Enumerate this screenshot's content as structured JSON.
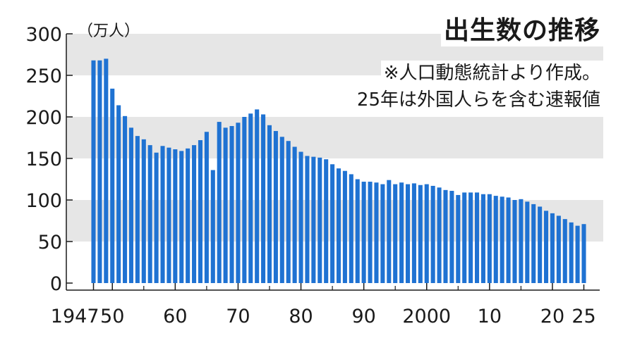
{
  "chart_data": {
    "type": "bar",
    "title": "出生数の推移",
    "notes": [
      "※人口動態統計より作成。",
      "25年は外国人らを含む速報値"
    ],
    "unit_label": "（万人）",
    "x": [
      1947,
      1948,
      1949,
      1950,
      1951,
      1952,
      1953,
      1954,
      1955,
      1956,
      1957,
      1958,
      1959,
      1960,
      1961,
      1962,
      1963,
      1964,
      1965,
      1966,
      1967,
      1968,
      1969,
      1970,
      1971,
      1972,
      1973,
      1974,
      1975,
      1976,
      1977,
      1978,
      1979,
      1980,
      1981,
      1982,
      1983,
      1984,
      1985,
      1986,
      1987,
      1988,
      1989,
      1990,
      1991,
      1992,
      1993,
      1994,
      1995,
      1996,
      1997,
      1998,
      1999,
      2000,
      2001,
      2002,
      2003,
      2004,
      2005,
      2006,
      2007,
      2008,
      2009,
      2010,
      2011,
      2012,
      2013,
      2014,
      2015,
      2016,
      2017,
      2018,
      2019,
      2020,
      2021,
      2022,
      2023,
      2024,
      2025
    ],
    "values": [
      268,
      268,
      270,
      234,
      214,
      201,
      187,
      177,
      173,
      166,
      157,
      165,
      163,
      161,
      159,
      162,
      166,
      172,
      182,
      136,
      194,
      187,
      189,
      193,
      200,
      204,
      209,
      203,
      190,
      183,
      176,
      171,
      164,
      158,
      153,
      152,
      151,
      149,
      143,
      138,
      135,
      131,
      125,
      122,
      122,
      121,
      119,
      124,
      119,
      121,
      119,
      120,
      118,
      119,
      117,
      115,
      112,
      111,
      106,
      109,
      109,
      109,
      107,
      107,
      105,
      104,
      103,
      100,
      101,
      98,
      95,
      92,
      87,
      84,
      81,
      77,
      73,
      69,
      71
    ],
    "ytick_labels": [
      "0",
      "50",
      "100",
      "150",
      "200",
      "250",
      "300"
    ],
    "xtick_labels": [
      {
        "x": 1947,
        "label": "1947"
      },
      {
        "x": 1950,
        "label": "50"
      },
      {
        "x": 1960,
        "label": "60"
      },
      {
        "x": 1970,
        "label": "70"
      },
      {
        "x": 1980,
        "label": "80"
      },
      {
        "x": 1990,
        "label": "90"
      },
      {
        "x": 2000,
        "label": "2000"
      },
      {
        "x": 2010,
        "label": "10"
      },
      {
        "x": 2020,
        "label": "20"
      },
      {
        "x": 2025,
        "label": "25"
      }
    ],
    "ylim": [
      0,
      300
    ],
    "bar_color": "#1f72d2",
    "band_color": "#e6e6e6",
    "text_color": "#1a1a1a"
  }
}
